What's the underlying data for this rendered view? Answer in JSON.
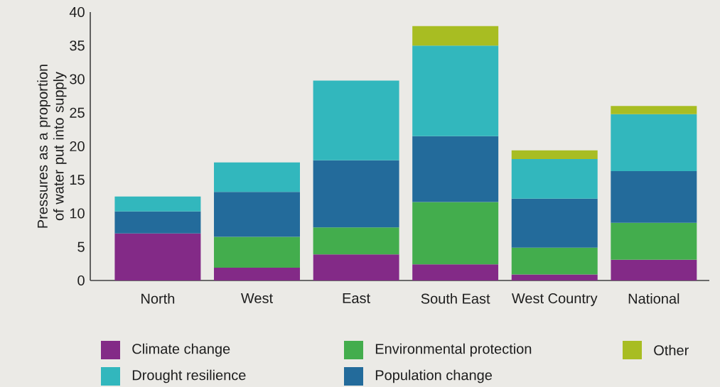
{
  "chart_data": {
    "type": "bar",
    "stacked": true,
    "ylabel": "Pressures as a proportion of water put into supply",
    "categories": [
      "North",
      "West",
      "East",
      "South East",
      "West Country",
      "National"
    ],
    "series": [
      {
        "name": "Climate change",
        "color": "#832a87",
        "values": [
          7.0,
          1.9,
          3.9,
          2.4,
          0.9,
          3.1
        ]
      },
      {
        "name": "Environmental protection",
        "color": "#43ad4d",
        "values": [
          null,
          4.6,
          4.0,
          9.3,
          4.0,
          5.5
        ]
      },
      {
        "name": "Population change",
        "color": "#236b9b",
        "values": [
          3.3,
          6.7,
          10.0,
          9.8,
          7.3,
          7.7
        ]
      },
      {
        "name": "Drought resilience",
        "color": "#32b7bd",
        "values": [
          2.2,
          4.4,
          11.9,
          13.5,
          5.9,
          8.5
        ]
      },
      {
        "name": "Other",
        "color": "#a8bd22",
        "values": [
          null,
          null,
          null,
          2.9,
          1.3,
          1.2
        ]
      }
    ],
    "ylim": [
      0,
      40
    ],
    "yticks": [
      0,
      5,
      10,
      15,
      20,
      25,
      30,
      35,
      40
    ],
    "grid": false,
    "legend": "bottom"
  }
}
